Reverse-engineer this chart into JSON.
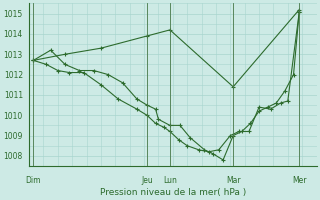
{
  "xlabel": "Pression niveau de la mer( hPa )",
  "bg_color": "#cdeae5",
  "grid_color": "#a8d5ce",
  "line_color": "#2d6b2d",
  "vline_color": "#4a7a4a",
  "spine_color": "#2d6b2d",
  "ylim": [
    1007.5,
    1015.5
  ],
  "yticks": [
    1008,
    1009,
    1010,
    1011,
    1012,
    1013,
    1014,
    1015
  ],
  "xlim": [
    0,
    20
  ],
  "day_labels": [
    "Dim",
    "Jeu",
    "Lun",
    "Mar",
    "Mer"
  ],
  "day_positions": [
    0.3,
    8.2,
    9.8,
    14.2,
    18.8
  ],
  "vline_positions": [
    0.3,
    8.2,
    9.8,
    14.2,
    18.8
  ],
  "series1_x": [
    0.3,
    1.2,
    2.0,
    2.8,
    3.8,
    5.0,
    6.2,
    7.5,
    8.2,
    8.8,
    9.4,
    9.8,
    10.4,
    11.0,
    11.8,
    12.5,
    13.2,
    14.0,
    14.6,
    15.3,
    16.0,
    16.8,
    17.5,
    18.0,
    18.8
  ],
  "series1_y": [
    1012.7,
    1012.5,
    1012.2,
    1012.1,
    1012.1,
    1011.5,
    1010.8,
    1010.3,
    1010.0,
    1009.6,
    1009.4,
    1009.2,
    1008.8,
    1008.5,
    1008.3,
    1008.2,
    1008.3,
    1009.0,
    1009.2,
    1009.2,
    1010.4,
    1010.3,
    1010.6,
    1010.7,
    1015.1
  ],
  "series2_x": [
    0.3,
    2.5,
    5.0,
    8.2,
    9.8,
    14.2,
    18.8
  ],
  "series2_y": [
    1012.7,
    1013.0,
    1013.3,
    1013.9,
    1014.2,
    1011.4,
    1015.2
  ],
  "series3_x": [
    0.3,
    1.5,
    2.5,
    3.5,
    4.5,
    5.5,
    6.5,
    7.5,
    8.2,
    8.8,
    9.0,
    9.8,
    10.5,
    11.2,
    12.2,
    12.8,
    13.5,
    14.2,
    14.8,
    15.4,
    16.0,
    16.6,
    17.2,
    17.8,
    18.4,
    18.8
  ],
  "series3_y": [
    1012.7,
    1013.2,
    1012.5,
    1012.2,
    1012.2,
    1012.0,
    1011.6,
    1010.8,
    1010.5,
    1010.3,
    1009.8,
    1009.5,
    1009.5,
    1008.9,
    1008.3,
    1008.1,
    1007.8,
    1009.0,
    1009.2,
    1009.6,
    1010.2,
    1010.4,
    1010.6,
    1011.2,
    1012.0,
    1015.1
  ]
}
